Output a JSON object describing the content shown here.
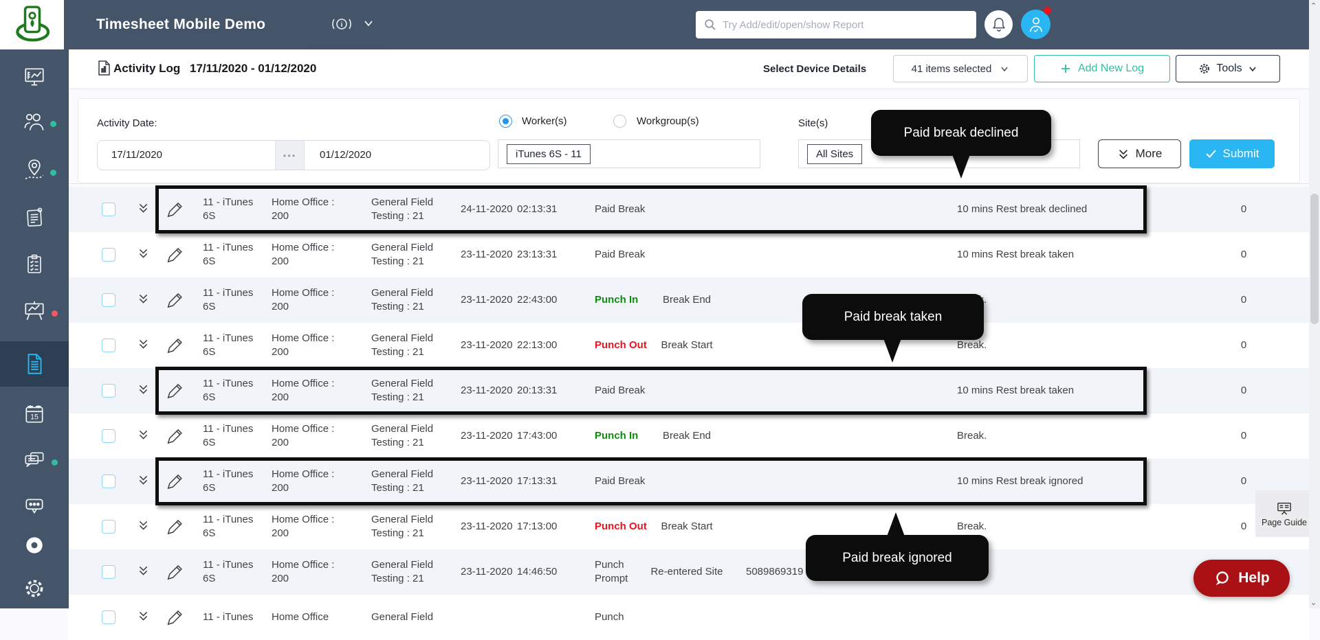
{
  "header": {
    "app_title": "Timesheet Mobile Demo",
    "search_placeholder": "Try Add/edit/open/show Report"
  },
  "sidebar": {
    "items": [
      {
        "icon": "dashboard-icon"
      },
      {
        "icon": "workers-icon",
        "dot": "#2fbf9f"
      },
      {
        "icon": "map-routes-icon",
        "dot": "#2fbf9f"
      },
      {
        "icon": "notes-icon"
      },
      {
        "icon": "checklist-icon"
      },
      {
        "icon": "presentation-chart-icon",
        "dot": "#f0566c"
      },
      {
        "icon": "activity-log-icon",
        "active": true
      },
      {
        "icon": "calendar-icon"
      },
      {
        "icon": "messages-icon",
        "dot": "#2fbf9f"
      },
      {
        "icon": "feedback-icon"
      },
      {
        "icon": "record-icon"
      },
      {
        "icon": "settings-icon"
      }
    ]
  },
  "page": {
    "title": "Activity Log",
    "date_range": "17/11/2020 - 01/12/2020",
    "device_details_label": "Select Device Details",
    "device_details_value": "41 items selected",
    "add_new_log_label": "Add New Log",
    "tools_label": "Tools"
  },
  "filters": {
    "activity_date_label": "Activity Date:",
    "date_from": "17/11/2020",
    "date_to": "01/12/2020",
    "worker_radio_label": "Worker(s)",
    "workgroup_radio_label": "Workgroup(s)",
    "worker_chip": "iTunes 6S - 11",
    "sites_label": "Site(s)",
    "sites_chip": "All Sites",
    "more_label": "More",
    "submit_label": "Submit"
  },
  "tooltips": [
    {
      "text": "Paid break declined"
    },
    {
      "text": "Paid break taken"
    },
    {
      "text": "Paid break ignored"
    }
  ],
  "table": {
    "rows": [
      {
        "device": "11 - iTunes 6S",
        "site": "Home Office : 200",
        "task": "General Field Testing : 21",
        "date": "24-11-2020",
        "time": "02:13:31",
        "type": "Paid Break",
        "type_style": "normal",
        "subtype": "",
        "extra": "",
        "description": "10 mins Rest break declined",
        "count": "0",
        "highlighted": true
      },
      {
        "device": "11 - iTunes 6S",
        "site": "Home Office : 200",
        "task": "General Field Testing : 21",
        "date": "23-11-2020",
        "time": "23:13:31",
        "type": "Paid Break",
        "type_style": "normal",
        "subtype": "",
        "extra": "",
        "description": "10 mins Rest break taken",
        "count": "0",
        "highlighted": false
      },
      {
        "device": "11 - iTunes 6S",
        "site": "Home Office : 200",
        "task": "General Field Testing : 21",
        "date": "23-11-2020",
        "time": "22:43:00",
        "type": "Punch In",
        "type_style": "in",
        "subtype": "Break End",
        "extra": "",
        "description": "Break.",
        "count": "0",
        "highlighted": false
      },
      {
        "device": "11 - iTunes 6S",
        "site": "Home Office : 200",
        "task": "General Field Testing : 21",
        "date": "23-11-2020",
        "time": "22:13:00",
        "type": "Punch Out",
        "type_style": "out",
        "subtype": "Break Start",
        "extra": "",
        "description": "Break.",
        "count": "0",
        "highlighted": false
      },
      {
        "device": "11 - iTunes 6S",
        "site": "Home Office : 200",
        "task": "General Field Testing : 21",
        "date": "23-11-2020",
        "time": "20:13:31",
        "type": "Paid Break",
        "type_style": "normal",
        "subtype": "",
        "extra": "",
        "description": "10 mins Rest break taken",
        "count": "0",
        "highlighted": true
      },
      {
        "device": "11 - iTunes 6S",
        "site": "Home Office : 200",
        "task": "General Field Testing : 21",
        "date": "23-11-2020",
        "time": "17:43:00",
        "type": "Punch In",
        "type_style": "in",
        "subtype": "Break End",
        "extra": "",
        "description": "Break.",
        "count": "0",
        "highlighted": false
      },
      {
        "device": "11 - iTunes 6S",
        "site": "Home Office : 200",
        "task": "General Field Testing : 21",
        "date": "23-11-2020",
        "time": "17:13:31",
        "type": "Paid Break",
        "type_style": "normal",
        "subtype": "",
        "extra": "",
        "description": "10 mins Rest break ignored",
        "count": "0",
        "highlighted": true
      },
      {
        "device": "11 - iTunes 6S",
        "site": "Home Office : 200",
        "task": "General Field Testing : 21",
        "date": "23-11-2020",
        "time": "17:13:00",
        "type": "Punch Out",
        "type_style": "out",
        "subtype": "Break Start",
        "extra": "",
        "description": "Break.",
        "count": "0",
        "highlighted": false
      },
      {
        "device": "11 - iTunes 6S",
        "site": "Home Office : 200",
        "task": "General Field Testing : 21",
        "date": "23-11-2020",
        "time": "14:46:50",
        "type": "Punch Prompt",
        "type_style": "normal",
        "subtype": "Re-entered Site",
        "extra": "5089869319",
        "description": "",
        "count": "0",
        "highlighted": false
      },
      {
        "device": "11 - iTunes",
        "site": "Home Office",
        "task": "General Field",
        "date": "",
        "time": "",
        "type": "Punch",
        "type_style": "normal",
        "subtype": "",
        "extra": "",
        "description": "",
        "count": "",
        "highlighted": false
      }
    ]
  },
  "footer": {
    "page_guide_label": "Page Guide",
    "help_label": "Help"
  },
  "colors": {
    "header_bg": "#455569",
    "accent_teal": "#2fc0a2",
    "submit_blue": "#29b6f2",
    "punch_in_green": "#0f8a0f",
    "punch_out_red": "#e8131c",
    "help_red": "#a91115",
    "row_alt": "#f1f4f8",
    "badge_red": "#e8131c"
  }
}
